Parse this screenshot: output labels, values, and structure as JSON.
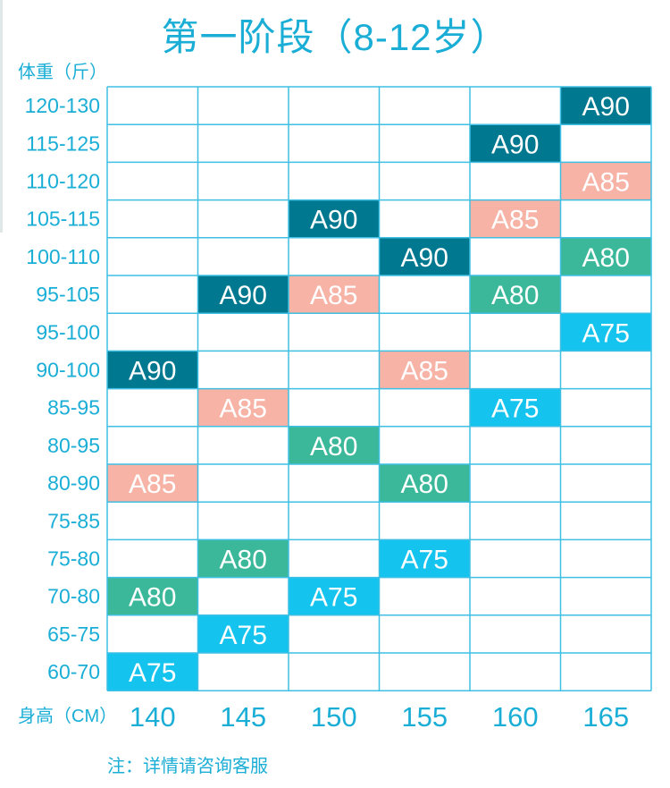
{
  "title": "第一阶段（8-12岁）",
  "y_axis_label": "体重（斤）",
  "x_axis_label": "身高（CM）",
  "note": "注：详情请咨询客服",
  "colors": {
    "text": "#1aaed6",
    "grid": "#3fbfe3",
    "A90": "#00788f",
    "A85": "#f6b3a6",
    "A80": "#3bb89a",
    "A75": "#14c4ef"
  },
  "chart_data": {
    "type": "table",
    "title": "第一阶段（8-12岁）",
    "xlabel": "身高（CM）",
    "ylabel": "体重（斤）",
    "columns": [
      "140",
      "145",
      "150",
      "155",
      "160",
      "165"
    ],
    "rows": [
      "120-130",
      "115-125",
      "110-120",
      "105-115",
      "100-110",
      "95-105",
      "95-100",
      "90-100",
      "85-95",
      "80-95",
      "80-90",
      "75-85",
      "75-80",
      "70-80",
      "65-75",
      "60-70"
    ],
    "cells": [
      {
        "row": "120-130",
        "col": "165",
        "size": "A90"
      },
      {
        "row": "115-125",
        "col": "160",
        "size": "A90"
      },
      {
        "row": "110-120",
        "col": "165",
        "size": "A85"
      },
      {
        "row": "105-115",
        "col": "150",
        "size": "A90"
      },
      {
        "row": "105-115",
        "col": "160",
        "size": "A85"
      },
      {
        "row": "100-110",
        "col": "155",
        "size": "A90"
      },
      {
        "row": "100-110",
        "col": "165",
        "size": "A80"
      },
      {
        "row": "95-105",
        "col": "145",
        "size": "A90"
      },
      {
        "row": "95-105",
        "col": "150",
        "size": "A85"
      },
      {
        "row": "95-105",
        "col": "160",
        "size": "A80"
      },
      {
        "row": "95-100",
        "col": "165",
        "size": "A75"
      },
      {
        "row": "90-100",
        "col": "140",
        "size": "A90"
      },
      {
        "row": "90-100",
        "col": "155",
        "size": "A85"
      },
      {
        "row": "85-95",
        "col": "145",
        "size": "A85"
      },
      {
        "row": "85-95",
        "col": "160",
        "size": "A75"
      },
      {
        "row": "80-95",
        "col": "150",
        "size": "A80"
      },
      {
        "row": "80-90",
        "col": "140",
        "size": "A85"
      },
      {
        "row": "80-90",
        "col": "155",
        "size": "A80"
      },
      {
        "row": "75-80",
        "col": "145",
        "size": "A80"
      },
      {
        "row": "75-80",
        "col": "155",
        "size": "A75"
      },
      {
        "row": "70-80",
        "col": "140",
        "size": "A80"
      },
      {
        "row": "70-80",
        "col": "150",
        "size": "A75"
      },
      {
        "row": "65-75",
        "col": "145",
        "size": "A75"
      },
      {
        "row": "60-70",
        "col": "140",
        "size": "A75"
      }
    ]
  }
}
